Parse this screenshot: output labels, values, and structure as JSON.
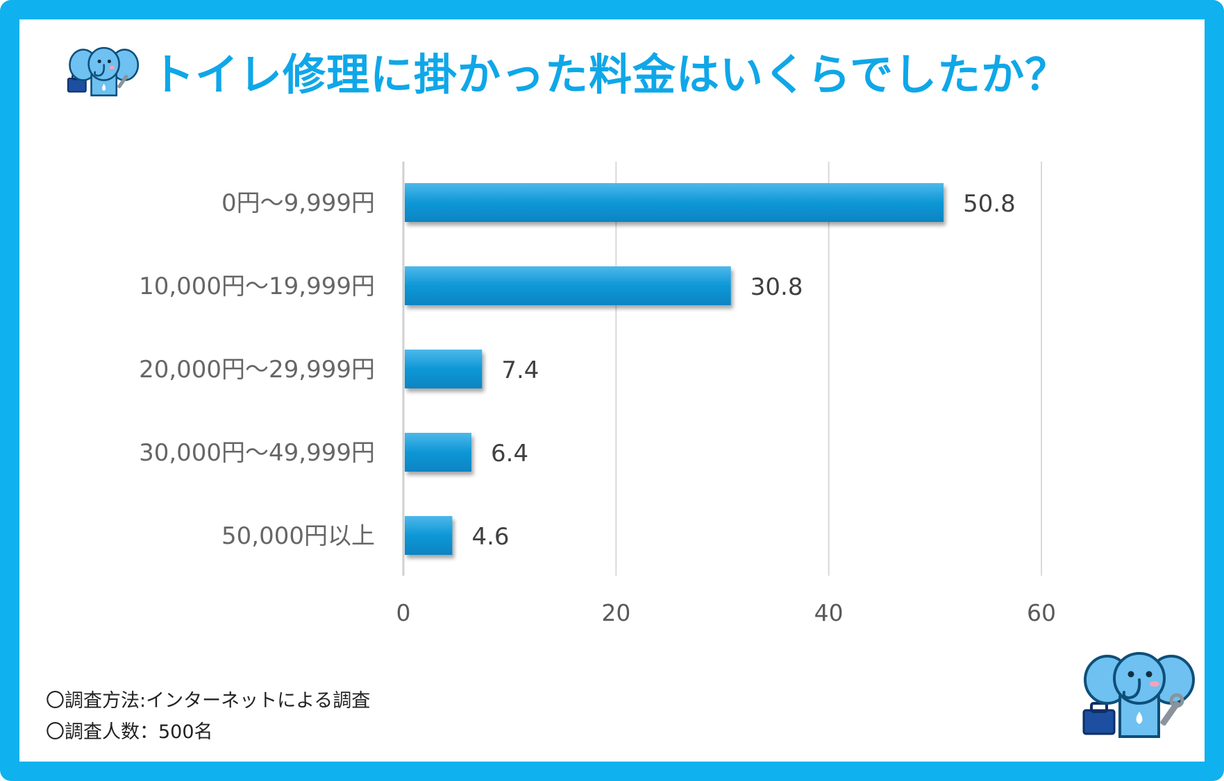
{
  "title": "トイレ修理に掛かった料金はいくらでしたか？",
  "chart_data": {
    "type": "bar",
    "orientation": "horizontal",
    "categories": [
      "0円〜9,999円",
      "10,000円〜19,999円",
      "20,000円〜29,999円",
      "30,000円〜49,999円",
      "50,000円以上"
    ],
    "values": [
      50.8,
      30.8,
      7.4,
      6.4,
      4.6
    ],
    "value_labels": [
      "50.8",
      "30.8",
      "7.4",
      "6.4",
      "4.6"
    ],
    "xticks": [
      "0",
      "20",
      "40",
      "60"
    ],
    "xlim": [
      0,
      60
    ],
    "grid": true,
    "bar_color": "#0e97d6"
  },
  "footer": {
    "method": "〇調査方法:インターネットによる調査",
    "count": "〇調査人数：500名"
  },
  "colors": {
    "frame": "#0fb1ee",
    "title": "#0fa7e8",
    "mascot": "#6ec1f0"
  },
  "icons": {
    "mascot": "elephant-mascot-icon",
    "toolbox": "toolbox-icon",
    "wrench": "wrench-icon"
  }
}
